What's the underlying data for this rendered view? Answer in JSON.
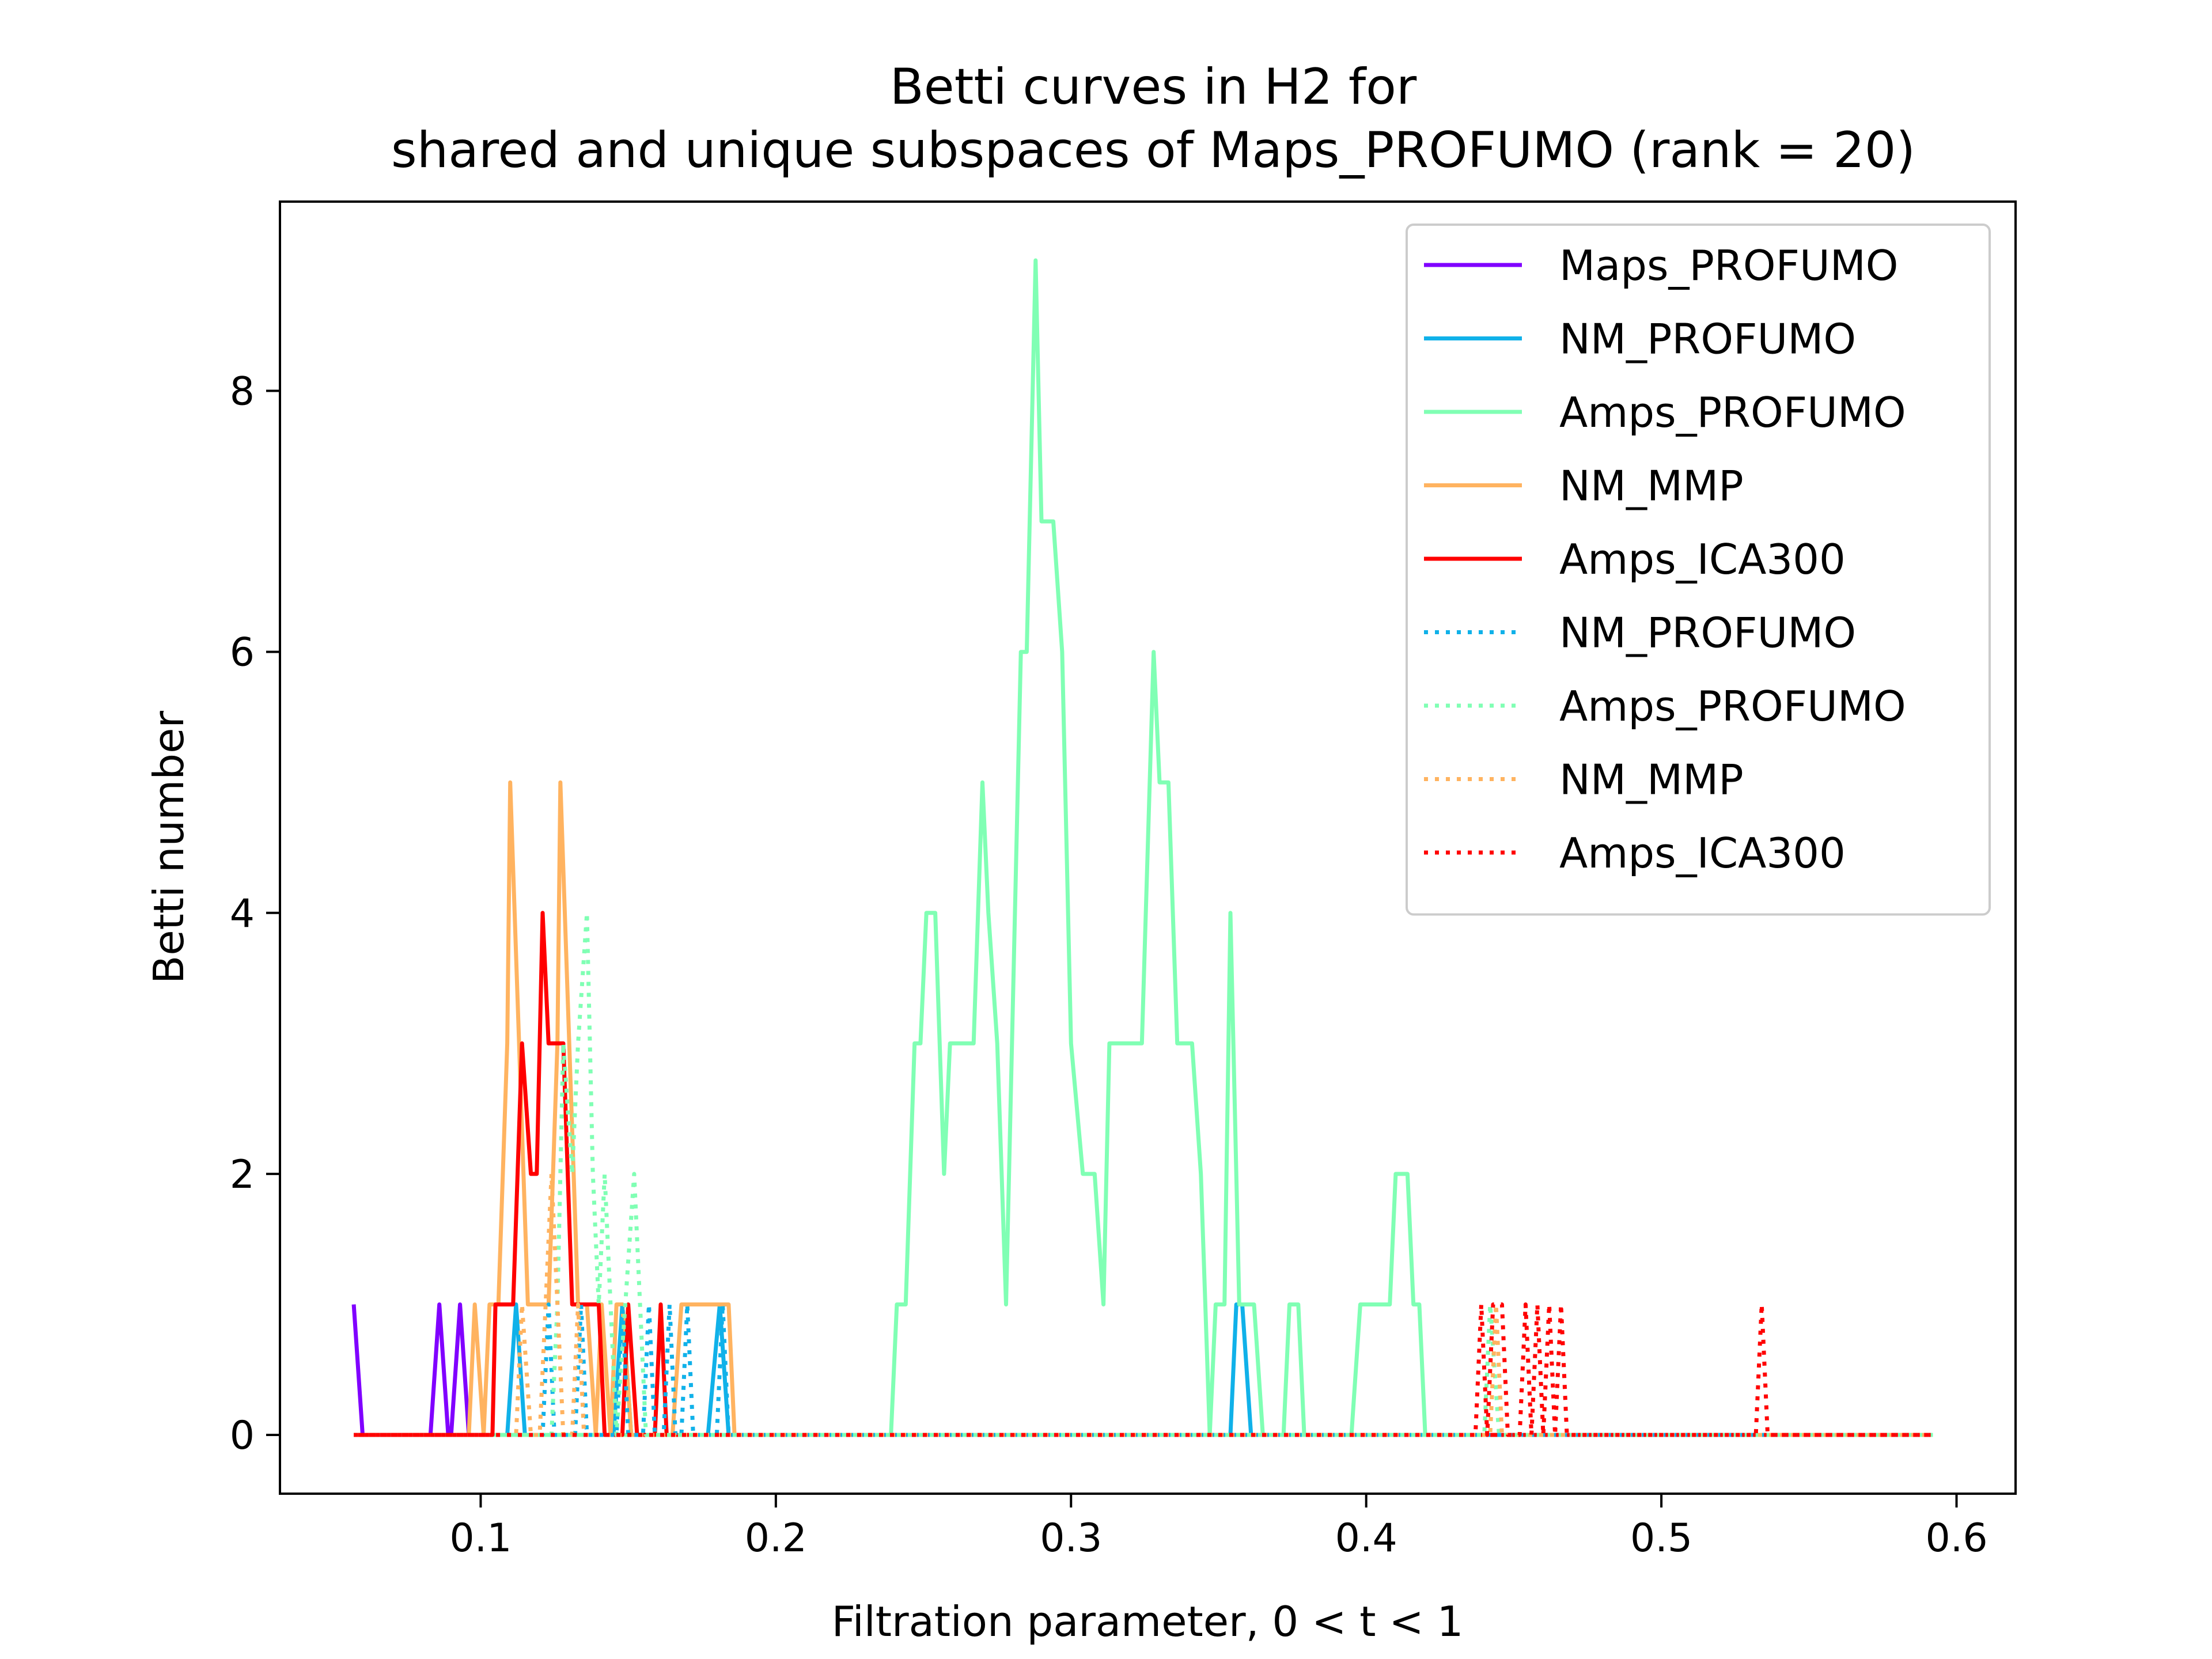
{
  "chart_data": {
    "type": "line",
    "title_line1": "Betti curves in H2 for",
    "title_line2": "shared and unique subspaces of Maps_PROFUMO (rank = 20)",
    "xlabel": "Filtration parameter, 0 < t < 1",
    "ylabel": "Betti number",
    "xlim": [
      0.032,
      0.62
    ],
    "ylim": [
      -0.45,
      9.45
    ],
    "xticks": [
      0.1,
      0.2,
      0.3,
      0.4,
      0.5,
      0.6
    ],
    "xtick_labels": [
      "0.1",
      "0.2",
      "0.3",
      "0.4",
      "0.5",
      "0.6"
    ],
    "yticks": [
      0,
      2,
      4,
      6,
      8
    ],
    "ytick_labels": [
      "0",
      "2",
      "4",
      "6",
      "8"
    ],
    "grid": false,
    "legend_position": "top-right",
    "series": [
      {
        "name": "Maps_PROFUMO",
        "color": "#8000ff",
        "style": "solid",
        "points": [
          [
            0.057,
            1
          ],
          [
            0.06,
            0
          ],
          [
            0.083,
            0
          ],
          [
            0.086,
            1
          ],
          [
            0.089,
            0
          ],
          [
            0.09,
            0
          ],
          [
            0.093,
            1
          ],
          [
            0.096,
            0
          ],
          [
            0.592,
            0
          ]
        ]
      },
      {
        "name": "NM_PROFUMO",
        "color": "#10b1e9",
        "style": "solid",
        "points": [
          [
            0.057,
            0
          ],
          [
            0.109,
            0
          ],
          [
            0.112,
            1
          ],
          [
            0.115,
            0
          ],
          [
            0.145,
            0
          ],
          [
            0.148,
            1
          ],
          [
            0.151,
            0
          ],
          [
            0.177,
            0
          ],
          [
            0.181,
            1
          ],
          [
            0.184,
            0
          ],
          [
            0.354,
            0
          ],
          [
            0.356,
            1
          ],
          [
            0.358,
            1
          ],
          [
            0.361,
            0
          ],
          [
            0.592,
            0
          ]
        ]
      },
      {
        "name": "Amps_PROFUMO",
        "color": "#80ffb4",
        "style": "solid",
        "points": [
          [
            0.057,
            0
          ],
          [
            0.239,
            0
          ],
          [
            0.241,
            1
          ],
          [
            0.244,
            1
          ],
          [
            0.247,
            3
          ],
          [
            0.249,
            3
          ],
          [
            0.251,
            4
          ],
          [
            0.254,
            4
          ],
          [
            0.257,
            2
          ],
          [
            0.259,
            3
          ],
          [
            0.261,
            3
          ],
          [
            0.264,
            3
          ],
          [
            0.267,
            3
          ],
          [
            0.27,
            5
          ],
          [
            0.272,
            4
          ],
          [
            0.275,
            3
          ],
          [
            0.278,
            1
          ],
          [
            0.28,
            3
          ],
          [
            0.283,
            6
          ],
          [
            0.285,
            6
          ],
          [
            0.288,
            9
          ],
          [
            0.29,
            7
          ],
          [
            0.294,
            7
          ],
          [
            0.297,
            6
          ],
          [
            0.3,
            3
          ],
          [
            0.304,
            2
          ],
          [
            0.308,
            2
          ],
          [
            0.311,
            1
          ],
          [
            0.313,
            3
          ],
          [
            0.316,
            3
          ],
          [
            0.32,
            3
          ],
          [
            0.324,
            3
          ],
          [
            0.328,
            6
          ],
          [
            0.33,
            5
          ],
          [
            0.333,
            5
          ],
          [
            0.336,
            3
          ],
          [
            0.339,
            3
          ],
          [
            0.341,
            3
          ],
          [
            0.344,
            2
          ],
          [
            0.347,
            0
          ],
          [
            0.349,
            1
          ],
          [
            0.352,
            1
          ],
          [
            0.354,
            4
          ],
          [
            0.357,
            1
          ],
          [
            0.36,
            1
          ],
          [
            0.362,
            1
          ],
          [
            0.365,
            0
          ],
          [
            0.372,
            0
          ],
          [
            0.374,
            1
          ],
          [
            0.377,
            1
          ],
          [
            0.379,
            0
          ],
          [
            0.395,
            0
          ],
          [
            0.398,
            1
          ],
          [
            0.402,
            1
          ],
          [
            0.406,
            1
          ],
          [
            0.408,
            1
          ],
          [
            0.41,
            2
          ],
          [
            0.414,
            2
          ],
          [
            0.416,
            1
          ],
          [
            0.418,
            1
          ],
          [
            0.42,
            0
          ],
          [
            0.592,
            0
          ]
        ]
      },
      {
        "name": "NM_MMP",
        "color": "#ffb360",
        "style": "solid",
        "points": [
          [
            0.057,
            0
          ],
          [
            0.096,
            0
          ],
          [
            0.098,
            1
          ],
          [
            0.101,
            0
          ],
          [
            0.103,
            1
          ],
          [
            0.106,
            1
          ],
          [
            0.109,
            3
          ],
          [
            0.11,
            5
          ],
          [
            0.113,
            3
          ],
          [
            0.116,
            1
          ],
          [
            0.118,
            1
          ],
          [
            0.12,
            1
          ],
          [
            0.123,
            1
          ],
          [
            0.126,
            3
          ],
          [
            0.127,
            5
          ],
          [
            0.13,
            3
          ],
          [
            0.133,
            1
          ],
          [
            0.136,
            1
          ],
          [
            0.139,
            0
          ],
          [
            0.141,
            1
          ],
          [
            0.144,
            0
          ],
          [
            0.146,
            1
          ],
          [
            0.148,
            1
          ],
          [
            0.151,
            0
          ],
          [
            0.165,
            0
          ],
          [
            0.168,
            1
          ],
          [
            0.172,
            1
          ],
          [
            0.176,
            1
          ],
          [
            0.178,
            1
          ],
          [
            0.181,
            1
          ],
          [
            0.184,
            1
          ],
          [
            0.186,
            0
          ],
          [
            0.592,
            0
          ]
        ]
      },
      {
        "name": "Amps_ICA300",
        "color": "#ff0000",
        "style": "solid",
        "points": [
          [
            0.057,
            0
          ],
          [
            0.104,
            0
          ],
          [
            0.105,
            1
          ],
          [
            0.108,
            1
          ],
          [
            0.111,
            1
          ],
          [
            0.114,
            3
          ],
          [
            0.117,
            2
          ],
          [
            0.119,
            2
          ],
          [
            0.121,
            4
          ],
          [
            0.123,
            3
          ],
          [
            0.126,
            3
          ],
          [
            0.128,
            3
          ],
          [
            0.131,
            1
          ],
          [
            0.134,
            1
          ],
          [
            0.137,
            1
          ],
          [
            0.14,
            1
          ],
          [
            0.142,
            0
          ],
          [
            0.148,
            0
          ],
          [
            0.15,
            1
          ],
          [
            0.153,
            0
          ],
          [
            0.159,
            0
          ],
          [
            0.161,
            1
          ],
          [
            0.163,
            0
          ],
          [
            0.592,
            0
          ]
        ]
      },
      {
        "name": "NM_PROFUMO",
        "color": "#10b1e9",
        "style": "dotted",
        "points": [
          [
            0.057,
            0
          ],
          [
            0.121,
            0
          ],
          [
            0.123,
            1
          ],
          [
            0.125,
            0
          ],
          [
            0.132,
            0
          ],
          [
            0.134,
            1
          ],
          [
            0.136,
            0
          ],
          [
            0.146,
            0
          ],
          [
            0.148,
            1
          ],
          [
            0.15,
            0
          ],
          [
            0.155,
            0
          ],
          [
            0.157,
            1
          ],
          [
            0.159,
            0
          ],
          [
            0.162,
            0
          ],
          [
            0.164,
            1
          ],
          [
            0.166,
            0
          ],
          [
            0.168,
            0
          ],
          [
            0.17,
            1
          ],
          [
            0.172,
            0
          ],
          [
            0.18,
            0
          ],
          [
            0.182,
            1
          ],
          [
            0.184,
            0
          ],
          [
            0.592,
            0
          ]
        ]
      },
      {
        "name": "Amps_PROFUMO",
        "color": "#80ffb4",
        "style": "dotted",
        "points": [
          [
            0.057,
            0
          ],
          [
            0.124,
            0
          ],
          [
            0.126,
            1
          ],
          [
            0.128,
            3
          ],
          [
            0.131,
            2
          ],
          [
            0.133,
            3
          ],
          [
            0.136,
            4
          ],
          [
            0.138,
            2
          ],
          [
            0.14,
            1
          ],
          [
            0.142,
            2
          ],
          [
            0.144,
            1
          ],
          [
            0.146,
            0
          ],
          [
            0.149,
            1
          ],
          [
            0.152,
            2
          ],
          [
            0.154,
            1
          ],
          [
            0.156,
            0
          ],
          [
            0.44,
            0
          ],
          [
            0.442,
            1
          ],
          [
            0.445,
            0
          ],
          [
            0.592,
            0
          ]
        ]
      },
      {
        "name": "NM_MMP",
        "color": "#ffb360",
        "style": "dotted",
        "points": [
          [
            0.057,
            0
          ],
          [
            0.112,
            0
          ],
          [
            0.114,
            1
          ],
          [
            0.117,
            0
          ],
          [
            0.12,
            0
          ],
          [
            0.122,
            1
          ],
          [
            0.124,
            2
          ],
          [
            0.126,
            1
          ],
          [
            0.128,
            0
          ],
          [
            0.131,
            0
          ],
          [
            0.133,
            1
          ],
          [
            0.135,
            0
          ],
          [
            0.442,
            0
          ],
          [
            0.444,
            1
          ],
          [
            0.446,
            0
          ],
          [
            0.592,
            0
          ]
        ]
      },
      {
        "name": "Amps_ICA300",
        "color": "#ff0000",
        "style": "dotted",
        "points": [
          [
            0.057,
            0
          ],
          [
            0.437,
            0
          ],
          [
            0.439,
            1
          ],
          [
            0.441,
            0
          ],
          [
            0.443,
            1
          ],
          [
            0.446,
            1
          ],
          [
            0.448,
            0
          ],
          [
            0.452,
            0
          ],
          [
            0.454,
            1
          ],
          [
            0.456,
            0
          ],
          [
            0.458,
            1
          ],
          [
            0.46,
            0
          ],
          [
            0.462,
            1
          ],
          [
            0.464,
            0
          ],
          [
            0.466,
            1
          ],
          [
            0.468,
            0
          ],
          [
            0.532,
            0
          ],
          [
            0.534,
            1
          ],
          [
            0.536,
            0
          ],
          [
            0.592,
            0
          ]
        ]
      }
    ]
  }
}
